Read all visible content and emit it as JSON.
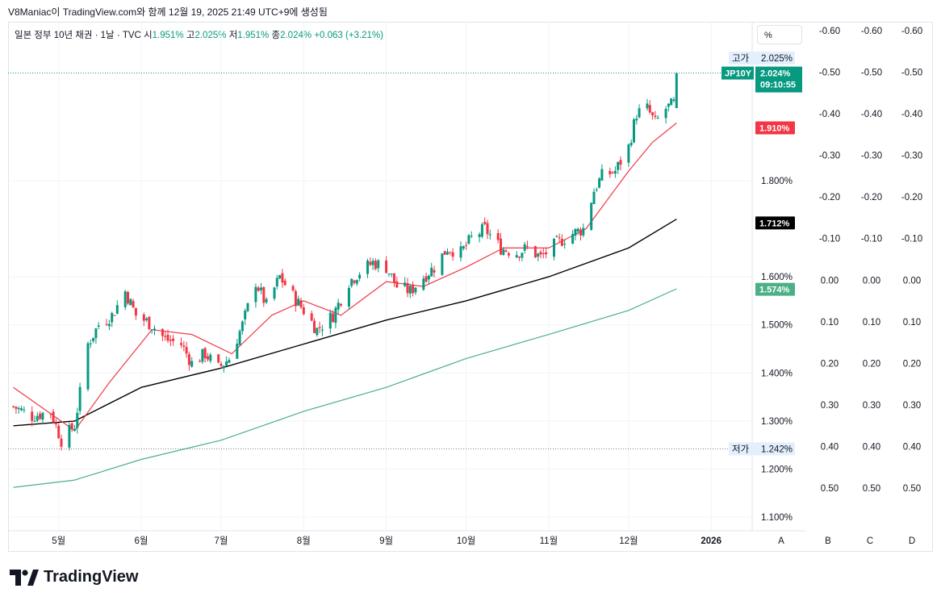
{
  "header": {
    "text": "V8Maniac이 TradingView.com와 함께 12월 19, 2025 21:49 UTC+9에 생성됨"
  },
  "legend": {
    "title": "일본 정부 10년 채권 · 1날 · TVC",
    "open_label": "시",
    "open": "1.951%",
    "high_label": "고",
    "high": "2.025%",
    "low_label": "저",
    "low": "1.951%",
    "close_label": "종",
    "close": "2.024%",
    "change": "+0.063 (+3.21%)"
  },
  "percent_button": "%",
  "chart_data": {
    "type": "candlestick",
    "symbol": "JP10Y",
    "y_axis_ticks": [
      "1.100%",
      "1.200%",
      "1.300%",
      "1.400%",
      "1.500%",
      "1.600%",
      "1.800%"
    ],
    "y_range": [
      1.08,
      2.07
    ],
    "x_axis_ticks": [
      "5월",
      "6월",
      "7월",
      "8월",
      "9월",
      "10월",
      "11월",
      "12월",
      "2026"
    ],
    "high_marker": {
      "label": "고가",
      "value": "2.025%"
    },
    "low_marker": {
      "label": "저가",
      "value": "1.242%"
    },
    "last_price": {
      "symbol": "JP10Y",
      "value": "2.024%",
      "countdown": "09:10:55"
    },
    "ma_labels": [
      {
        "value": "1.910%",
        "color": "#f23645"
      },
      {
        "value": "1.712%",
        "color": "#000000"
      },
      {
        "value": "1.574%",
        "color": "#4caf85"
      }
    ],
    "colors": {
      "up": "#089981",
      "down": "#f23645",
      "ma_fast": "#f23645",
      "ma_mid": "#000000",
      "ma_slow": "#4caf85"
    },
    "extra_scale_ticks": [
      "-0.60",
      "-0.50",
      "-0.40",
      "-0.30",
      "-0.20",
      "-0.10",
      "0.00",
      "0.10",
      "0.20",
      "0.30",
      "0.40",
      "0.50"
    ],
    "scale_letters": [
      "A",
      "B",
      "C",
      "D"
    ],
    "close_path": [
      [
        "2025-04-14",
        1.33
      ],
      [
        "2025-04-21",
        1.31
      ],
      [
        "2025-04-28",
        1.32
      ],
      [
        "2025-05-02",
        1.26
      ],
      [
        "2025-05-07",
        1.29
      ],
      [
        "2025-05-12",
        1.46
      ],
      [
        "2025-05-16",
        1.5
      ],
      [
        "2025-05-21",
        1.52
      ],
      [
        "2025-05-26",
        1.57
      ],
      [
        "2025-05-30",
        1.52
      ],
      [
        "2025-06-05",
        1.5
      ],
      [
        "2025-06-10",
        1.47
      ],
      [
        "2025-06-16",
        1.46
      ],
      [
        "2025-06-20",
        1.42
      ],
      [
        "2025-06-25",
        1.44
      ],
      [
        "2025-06-30",
        1.41
      ],
      [
        "2025-07-04",
        1.43
      ],
      [
        "2025-07-09",
        1.5
      ],
      [
        "2025-07-14",
        1.59
      ],
      [
        "2025-07-18",
        1.54
      ],
      [
        "2025-07-23",
        1.6
      ],
      [
        "2025-07-28",
        1.56
      ],
      [
        "2025-08-01",
        1.53
      ],
      [
        "2025-08-06",
        1.49
      ],
      [
        "2025-08-12",
        1.52
      ],
      [
        "2025-08-18",
        1.59
      ],
      [
        "2025-08-22",
        1.61
      ],
      [
        "2025-08-27",
        1.63
      ],
      [
        "2025-09-01",
        1.62
      ],
      [
        "2025-09-05",
        1.58
      ],
      [
        "2025-09-10",
        1.57
      ],
      [
        "2025-09-15",
        1.6
      ],
      [
        "2025-09-19",
        1.62
      ],
      [
        "2025-09-24",
        1.66
      ],
      [
        "2025-09-29",
        1.65
      ],
      [
        "2025-10-03",
        1.68
      ],
      [
        "2025-10-08",
        1.7
      ],
      [
        "2025-10-14",
        1.66
      ],
      [
        "2025-10-20",
        1.65
      ],
      [
        "2025-10-24",
        1.66
      ],
      [
        "2025-10-29",
        1.64
      ],
      [
        "2025-11-04",
        1.67
      ],
      [
        "2025-11-10",
        1.69
      ],
      [
        "2025-11-14",
        1.7
      ],
      [
        "2025-11-18",
        1.78
      ],
      [
        "2025-11-21",
        1.81
      ],
      [
        "2025-11-26",
        1.82
      ],
      [
        "2025-12-01",
        1.87
      ],
      [
        "2025-12-04",
        1.94
      ],
      [
        "2025-12-08",
        1.95
      ],
      [
        "2025-12-11",
        1.92
      ],
      [
        "2025-12-15",
        1.95
      ],
      [
        "2025-12-18",
        1.96
      ],
      [
        "2025-12-19",
        2.024
      ]
    ],
    "ma_fast": [
      [
        "2025-04-14",
        1.37
      ],
      [
        "2025-05-07",
        1.28
      ],
      [
        "2025-05-20",
        1.38
      ],
      [
        "2025-06-05",
        1.49
      ],
      [
        "2025-06-20",
        1.48
      ],
      [
        "2025-07-05",
        1.44
      ],
      [
        "2025-07-20",
        1.52
      ],
      [
        "2025-08-01",
        1.55
      ],
      [
        "2025-08-15",
        1.52
      ],
      [
        "2025-09-01",
        1.59
      ],
      [
        "2025-09-15",
        1.58
      ],
      [
        "2025-10-01",
        1.62
      ],
      [
        "2025-10-15",
        1.66
      ],
      [
        "2025-11-01",
        1.66
      ],
      [
        "2025-11-15",
        1.7
      ],
      [
        "2025-12-01",
        1.82
      ],
      [
        "2025-12-10",
        1.88
      ],
      [
        "2025-12-19",
        1.92
      ]
    ],
    "ma_mid": [
      [
        "2025-04-14",
        1.29
      ],
      [
        "2025-05-07",
        1.3
      ],
      [
        "2025-06-01",
        1.37
      ],
      [
        "2025-07-01",
        1.41
      ],
      [
        "2025-08-01",
        1.46
      ],
      [
        "2025-09-01",
        1.51
      ],
      [
        "2025-10-01",
        1.55
      ],
      [
        "2025-11-01",
        1.6
      ],
      [
        "2025-12-01",
        1.66
      ],
      [
        "2025-12-19",
        1.72
      ]
    ],
    "ma_slow": [
      [
        "2025-04-14",
        1.162
      ],
      [
        "2025-05-07",
        1.177
      ],
      [
        "2025-06-01",
        1.22
      ],
      [
        "2025-07-01",
        1.26
      ],
      [
        "2025-08-01",
        1.32
      ],
      [
        "2025-09-01",
        1.37
      ],
      [
        "2025-10-01",
        1.43
      ],
      [
        "2025-11-01",
        1.48
      ],
      [
        "2025-12-01",
        1.53
      ],
      [
        "2025-12-19",
        1.575
      ]
    ]
  },
  "footer": {
    "logo_text": "TradingView"
  }
}
